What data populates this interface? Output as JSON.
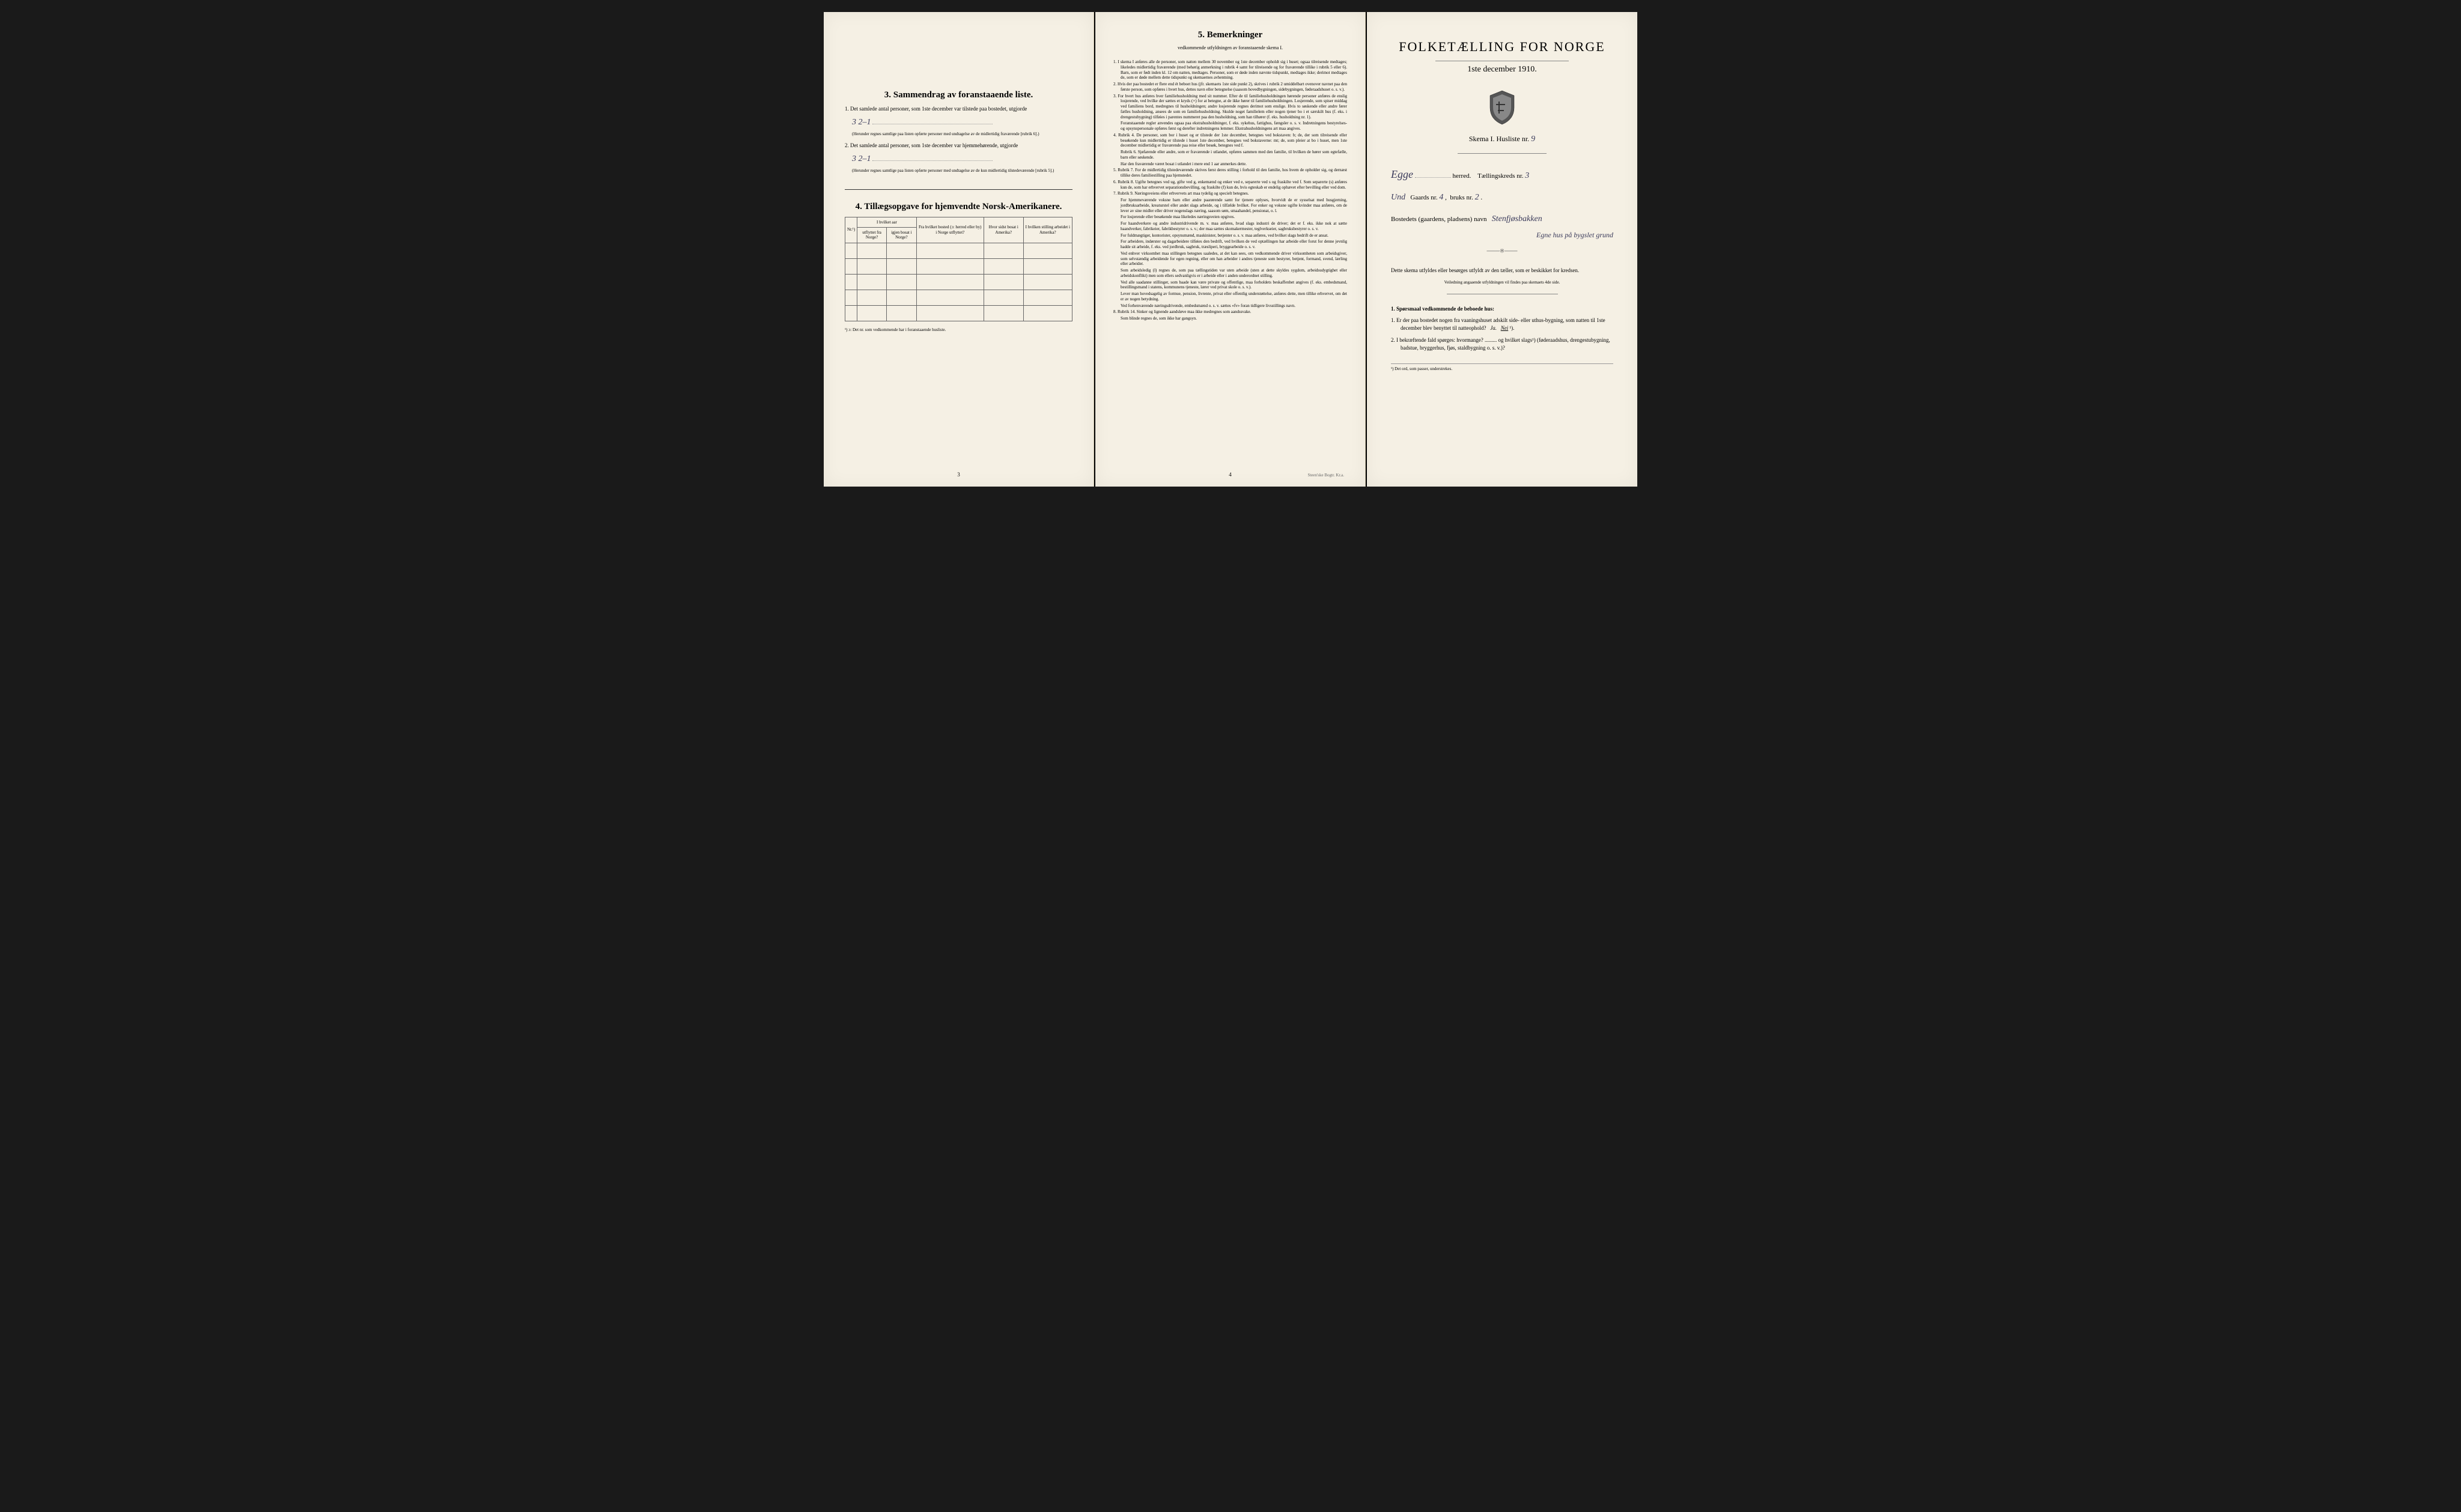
{
  "page_left": {
    "section3_title": "3.  Sammendrag av foranstaaende liste.",
    "item1_text": "1. Det samlede antal personer, som 1ste december var tilstede paa bostedet, utgjorde",
    "item1_value": "3    2–1",
    "item1_note": "(Herunder regnes samtlige paa listen opførte personer med undtagelse av de midlertidig fraværende [rubrik 6].)",
    "item2_text": "2. Det samlede antal personer, som 1ste december var hjemmehørende, utgjorde",
    "item2_value": "3    2–1",
    "item2_note": "(Herunder regnes samtlige paa listen opførte personer med undtagelse av de kun midlertidig tilstedeværende [rubrik 5].)",
    "section4_title": "4.  Tillægsopgave for hjemvendte Norsk-Amerikanere.",
    "table": {
      "col1": "Nr.¹)",
      "col2_top": "I hvilket aar",
      "col2a": "utflyttet fra Norge?",
      "col2b": "igjen bosat i Norge?",
      "col3": "Fra hvilket bosted (ɔ: herred eller by) i Norge utflyttet?",
      "col4": "Hvor sidst bosat i Amerika?",
      "col5": "I hvilken stilling arbeidet i Amerika?"
    },
    "table_footnote": "¹) ɔ: Det nr. som vedkommende har i foranstaaende husliste.",
    "page_num": "3"
  },
  "page_middle": {
    "section5_title": "5.  Bemerkninger",
    "section5_sub": "vedkommende utfyldningen av foranstaaende skema I.",
    "items": [
      "1. I skema I anføres alle de personer, som natten mellem 30 november og 1ste december opholdt sig i huset; ogsaa tilreisende medtages; likeledes midlertidig fraværende (med behørig anmerkning i rubrik 4 samt for tilreisende og for fraværende tillike i rubrik 5 eller 6). Barn, som er født inden kl. 12 om natten, medtages. Personer, som er døde inden nævnte tidspunkt, medtages ikke; derimot medtages de, som er døde mellem dette tidspunkt og skemaernes avhentning.",
      "2. Hvis der paa bostedet er flere end ét beboet hus (jfr. skemaets 1ste side punkt 2), skrives i rubrik 2 umiddelbart ovenover navnet paa den første person, som opføres i hvert hus, dettes navn eller betegnelse (saasom hovedbygningen, sidebygningen, føderaadshuset o. s. v.).",
      "3. For hvert hus anføres hver familiehusholdning med sit nummer. Efter de til familiehusholdningen hørende personer anføres de enslig losjerende, ved hvilke der sættes et kryds (×) for at betegne, at de ikke hører til familiehusholdningen. Losjerende, som spiser middag ved familiens bord, medregnes til husholdningen; andre losjerende regnes derimot som enslige. Hvis to søskende eller andre fører fælles husholdning, ansees de som en familiehusholdning. Skulde noget familielem eller nogen tjener bo i et særskilt hus (f. eks. i drengestubygning) tilføies i parentes nummeret paa den husholdning, som han tilhører (f. eks. husholdning nr. 1).",
      "Foranstaaende regler anvendes ogsaa paa ekstrahusholdninger, f. eks. sykehus, fattighus, fængsler o. s. v. Indretningens bestyrelses- og opsynspersonale opføres først og derefter indretningens lemmer. Ekstrahusholdningens art maa angives.",
      "4. Rubrik 4. De personer, som bor i huset og er tilstede der 1ste december, betegnes ved bokstaven: b; de, der som tilreisende eller besøkende kun midlertidig er tilstede i huset 1ste december, betegnes ved bokstaverne: mt; de, som pleier at bo i huset, men 1ste december midlertidig er fraværende paa reise eller besøk, betegnes ved f.",
      "Rubrik 6. Sjøfarende eller andre, som er fraværende i utlandet, opføres sammen med den familie, til hvilken de hører som egtefælle, barn eller søskende.",
      "Har den fraværende været bosat i utlandet i mere end 1 aar anmerkes dette.",
      "5. Rubrik 7. For de midlertidig tilstedeværende skrives først deres stilling i forhold til den familie, hos hvem de opholder sig, og dernæst tillike deres familiestilling paa hjemstedet.",
      "6. Rubrik 8. Ugifte betegnes ved ug, gifte ved g, enkemænd og enker ved e, separerte ved s og fraskilte ved f. Som separerte (s) anføres kun de, som har erhvervet separationsbevilling, og fraskilte (f) kun de, hvis egteskab er endelig ophævet efter bevilling eller ved dom.",
      "7. Rubrik 9. Næringsveiens eller erhvervets art maa tydelig og specielt betegnes.",
      "For hjemmeværende voksne barn eller andre paarørende samt for tjenere oplyses, hvorvidt de er sysselsat med husgjerning, jordbruksarbeide, kreaturstel eller andet slags arbeide, og i tilfælde hvilket. For enker og voksne ugifte kvinder maa anføres, om de lever av sine midler eller driver nogenslags næring, saasom søm, smaahandel, pensionat, o. l.",
      "For losjerende eller besøkende maa likeledes næringsveien opgives.",
      "For haandverkere og andre industridrivende m. v. maa anføres, hvad slags industri de driver; det er f. eks. ikke nok at sætte haandverker, fabrikeier, fabrikbestyrer o. s. v.; der maa sættes skomakermester, teglverkseier, sagbruksbestyrer o. s. v.",
      "For fuldmægtiger, kontorister, opsynsmænd, maskinister, betjenter o. s. v. maa anføres, ved hvilket slags bedrift de er ansat.",
      "For arbeidere, indørster og dagarbeidere tilføies den bedrift, ved hvilken de ved optællingen har arbeide eller forut for denne jevnlig hadde sit arbeide, f. eks. ved jordbruk, sagbruk, træsliperi, bryggearbeide o. s. v.",
      "Ved enhver virksomhet maa stillingen betegnes saaledes, at det kan sees, om vedkommende driver virksomheten som arbeidsgiver, som selvstændig arbeidende for egen regning, eller om han arbeider i andres tjeneste som bestyrer, betjent, formand, svend, lærling eller arbeider.",
      "Som arbeidsledig (l) regnes de, som paa tællingstiden var uten arbeide (uten at dette skyldes sygdom, arbeidsudygtighet eller arbeidskonflikt) men som ellers sedvanligvis er i arbeide eller i anden underordnet stilling.",
      "Ved alle saadanne stillinger, som baade kan være private og offentlige, maa forholdets beskaffenhet angives (f. eks. embedsmand, bestillingsmand i statens, kommunens tjeneste, lærer ved privat skole o. s. v.).",
      "Lever man hovedsagelig av formue, pension, livrente, privat eller offentlig understøttelse, anføres dette, men tillike erhvervet, om det er av nogen betydning.",
      "Ved forhenværende næringsdrivende, embedsmænd o. s. v. sættes «fv» foran tidligere livsstillings navn.",
      "8. Rubrik 14. Sinker og lignende aandsløve maa ikke medregnes som aandssvake.",
      "Som blinde regnes de, som ikke har gangsyn."
    ],
    "page_num": "4",
    "printer": "Steen'ske Bogtr. Kr.a."
  },
  "page_right": {
    "main_title": "FOLKETÆLLING FOR NORGE",
    "date": "1ste december 1910.",
    "skema_label": "Skema I.  Husliste nr.",
    "skema_nr": "9",
    "herred_value": "Egge",
    "herred_label": "herred.",
    "kreds_label": "Tællingskreds nr.",
    "kreds_nr": "3",
    "amt_value": "Und",
    "gaards_label": "Gaards nr.",
    "gaards_nr": "4",
    "bruks_label": "bruks nr.",
    "bruks_nr": "2",
    "bosted_label": "Bostedets (gaardens, pladsens) navn",
    "bosted_value": "Stenfjøsbakken",
    "bosted_value2": "Egne hus på bygslet grund",
    "instruction": "Dette skema utfyldes eller besørges utfyldt av den tæller, som er beskikket for kredsen.",
    "instruction_sub": "Veiledning angaaende utfyldningen vil findes paa skemaets 4de side.",
    "q_header": "1. Spørsmaal vedkommende de beboede hus:",
    "q1": "1. Er der paa bostedet nogen fra vaaningshuset adskilt side- eller uthus-bygning, som natten til 1ste december blev benyttet til natteophold?   Ja.   Nei ¹).",
    "q1_nei": "Nei",
    "q2": "2. I bekræftende fald spørges: hvormange? ......... og hvilket slags¹) (føderaadshus, drengestubygning, badstue, bryggerhus, fjøs, staldbygning o. s. v.)?",
    "footnote": "¹) Det ord, som passer, understrekes."
  },
  "colors": {
    "paper": "#f5f0e4",
    "ink": "#1a1a1a",
    "handwriting": "#3a3a5a",
    "border": "#666666"
  }
}
